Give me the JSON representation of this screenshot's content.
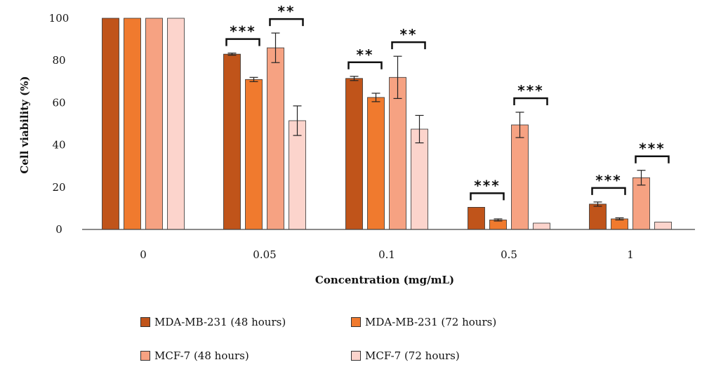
{
  "chart_data": {
    "type": "bar",
    "title": "",
    "xlabel": "Concentration (mg/mL)",
    "ylabel": "Cell viability (%)",
    "ylim": [
      0,
      100
    ],
    "yticks": [
      "0",
      "20",
      "40",
      "60",
      "80",
      "100"
    ],
    "grid": false,
    "legend_position": "bottom",
    "categories": [
      "0",
      "0.05",
      "0.1",
      "0.5",
      "1"
    ],
    "series": [
      {
        "name": "MDA-MB-231 (48 hours)",
        "color": "#c0541a",
        "values": [
          100,
          83,
          71.5,
          10.5,
          12
        ],
        "errors": [
          0,
          0.5,
          1,
          0,
          1
        ]
      },
      {
        "name": "MDA-MB-231 (72 hours)",
        "color": "#f07a2e",
        "values": [
          100,
          71,
          62.5,
          4.5,
          5
        ],
        "errors": [
          0,
          1,
          2,
          0.5,
          0.5
        ]
      },
      {
        "name": "MCF-7 (48 hours)",
        "color": "#f6a282",
        "values": [
          100,
          86,
          72,
          49.5,
          24.5
        ],
        "errors": [
          0,
          7,
          10,
          6,
          3.5
        ]
      },
      {
        "name": "MCF-7 (72 hours)",
        "color": "#fcd4cc",
        "values": [
          100,
          51.5,
          47.5,
          3,
          3.5
        ],
        "errors": [
          0,
          7,
          6.5,
          0,
          0
        ]
      }
    ],
    "significance": [
      {
        "category": 1,
        "pair": [
          0,
          1
        ],
        "label": "***"
      },
      {
        "category": 1,
        "pair": [
          2,
          3
        ],
        "label": "**"
      },
      {
        "category": 2,
        "pair": [
          0,
          1
        ],
        "label": "**"
      },
      {
        "category": 2,
        "pair": [
          2,
          3
        ],
        "label": "**"
      },
      {
        "category": 3,
        "pair": [
          0,
          1
        ],
        "label": "***"
      },
      {
        "category": 3,
        "pair": [
          2,
          3
        ],
        "label": "***"
      },
      {
        "category": 4,
        "pair": [
          0,
          1
        ],
        "label": "***"
      },
      {
        "category": 4,
        "pair": [
          2,
          3
        ],
        "label": "***"
      }
    ]
  }
}
